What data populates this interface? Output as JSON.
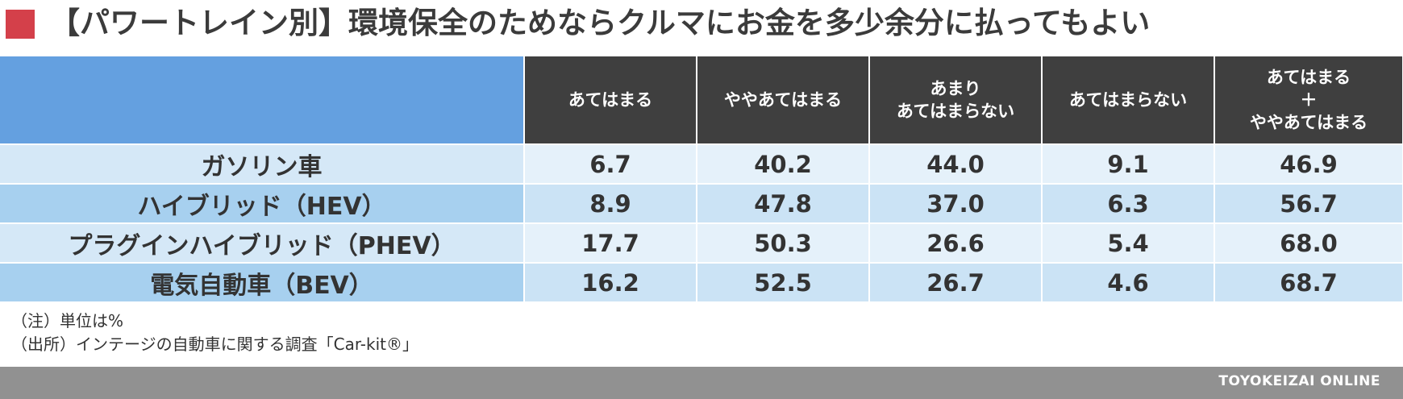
{
  "title": "【パワートレイン別】環境保全のためならクルマにお金を多少余分に払ってもよい",
  "colors": {
    "title_marker": "#d4404a",
    "header_bg": "#3f3f3f",
    "corner_bg": "#64a0e0",
    "footer_bg": "#919191"
  },
  "chart_data": {
    "type": "table",
    "columns": [
      {
        "lines": [
          "あてはまる"
        ]
      },
      {
        "lines": [
          "ややあてはまる"
        ]
      },
      {
        "lines": [
          "あまり",
          "あてはまらない"
        ]
      },
      {
        "lines": [
          "あてはまらない"
        ]
      },
      {
        "lines": [
          "あてはまる",
          "＋",
          "ややあてはまる"
        ]
      }
    ],
    "rows": [
      {
        "label": "ガソリン車",
        "values": [
          "6.7",
          "40.2",
          "44.0",
          "9.1",
          "46.9"
        ]
      },
      {
        "label": "ハイブリッド（HEV）",
        "values": [
          "8.9",
          "47.8",
          "37.0",
          "6.3",
          "56.7"
        ]
      },
      {
        "label": "プラグインハイブリッド（PHEV）",
        "values": [
          "17.7",
          "50.3",
          "26.6",
          "5.4",
          "68.0"
        ]
      },
      {
        "label": "電気自動車（BEV）",
        "values": [
          "16.2",
          "52.5",
          "26.7",
          "4.6",
          "68.7"
        ]
      }
    ]
  },
  "notes": [
    "（注）単位は%",
    "（出所）インテージの自動車に関する調査「Car-kit®」"
  ],
  "footer": {
    "brand": "TOYOKEIZAI ONLINE"
  }
}
